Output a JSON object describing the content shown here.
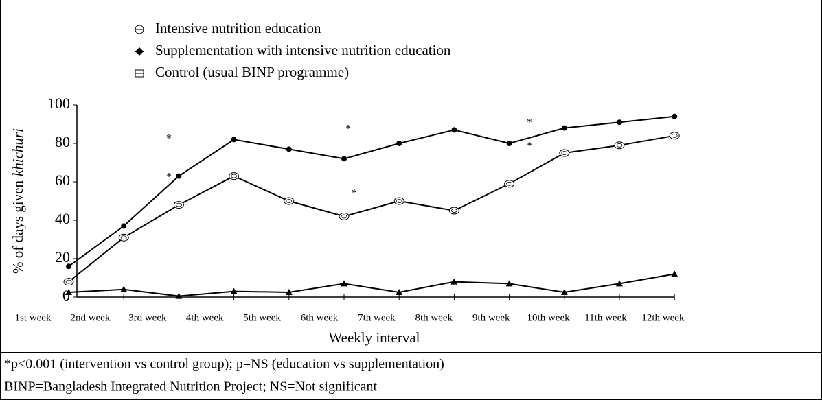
{
  "chart_data": {
    "type": "line",
    "legend": [
      "Intensive nutrition education",
      "Supplementation with intensive nutrition education",
      "Control (usual BINP programme)"
    ],
    "y_label": [
      "% of days given",
      "khichuri"
    ],
    "x_label": "Weekly interval",
    "categories": [
      "1st week",
      "2nd week",
      "3rd week",
      "4th week",
      "5th week",
      "6th week",
      "7th week",
      "8th week",
      "9th week",
      "10th week",
      "11th week",
      "12th week"
    ],
    "series": [
      {
        "marker": "filled-circle",
        "color": "#000000",
        "values": [
          16,
          37,
          63,
          82,
          77,
          72,
          80,
          87,
          80,
          88,
          91,
          94
        ]
      },
      {
        "marker": "open-circle",
        "color": "#000000",
        "values": [
          8,
          31,
          48,
          63,
          50,
          42,
          50,
          45,
          59,
          75,
          79,
          84
        ]
      },
      {
        "marker": "triangle",
        "color": "#000000",
        "values": [
          2.5,
          4,
          0.5,
          3,
          2.5,
          7,
          2.5,
          8,
          7,
          2.5,
          7,
          12
        ]
      }
    ],
    "ylim": [
      0,
      100
    ],
    "yticks": [
      0,
      20,
      40,
      60,
      80,
      100
    ],
    "annotations": [
      "*",
      "*",
      "*",
      "*",
      "*",
      "*"
    ],
    "notes": [
      "*p<0.001 (intervention vs control group); p=NS (education vs supplementation)",
      "BINP=Bangladesh Integrated Nutrition Project; NS=Not significant"
    ]
  }
}
